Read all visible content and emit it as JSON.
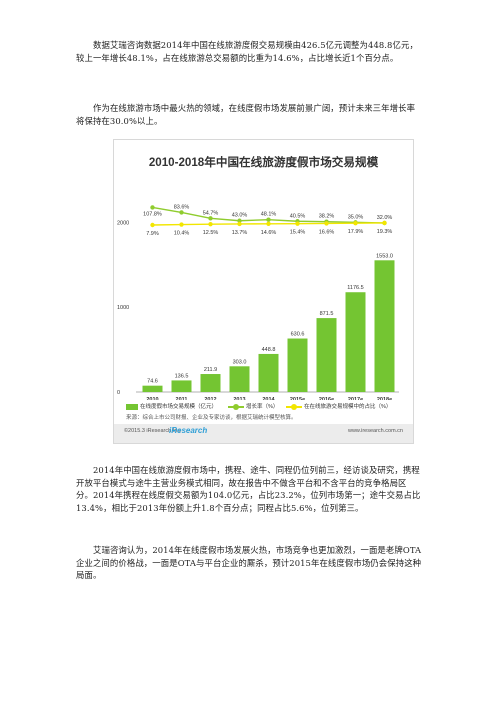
{
  "paragraphs": [
    "数据艾瑞咨询数据2014年中国在线旅游度假交易规模由426.5亿元调整为448.8亿元，较上一年增长48.1%，占在线旅游总交易额的比重为14.6%，占比增长近1个百分点。",
    "作为在线旅游市场中最火热的领域，在线度假市场发展前景广阔，预计未来三年增长率将保持在30.0%以上。",
    "2014年中国在线旅游度假市场中，携程、途牛、同程仍位列前三，经访谈及研究，携程开放平台模式与途牛主营业务模式相同，故在报告中不做含平台和不含平台的竞争格局区分。2014年携程在线度假交易额为104.0亿元，占比23.2%，位列市场第一；途牛交易占比13.4%，相比于2013年份额上升1.8个百分点；同程占比5.6%，位列第三。",
    "艾瑞咨询认为，2014年在线度假市场发展火热，市场竞争也更加激烈，一面是老牌OTA企业之间的价格战，一面是OTA与平台企业的厮杀，预计2015年在线度假市场仍会保持这种局面。"
  ],
  "figure": {
    "copyright": "©2015.3 iResearch Inc.",
    "logo": "iResearch",
    "url": "www.iresearch.com.cn",
    "source": "来源：综合上市公司财报、企业及专家访谈，根据艾瑞统计模型核算。"
  },
  "chart_data": {
    "type": "bar",
    "title": "2010-2018年中国在线旅游度假市场交易规模",
    "categories": [
      "2010",
      "2011",
      "2012",
      "2013",
      "2014",
      "2015e",
      "2016e",
      "2017e",
      "2018e"
    ],
    "y_ticks": [
      "0",
      "1000",
      "2000"
    ],
    "ylim": [
      0,
      2600
    ],
    "series": [
      {
        "name": "在线度假市场交易规模（亿元）",
        "kind": "bar",
        "color": "#74c532",
        "values": [
          74.6,
          136.5,
          211.9,
          303.0,
          448.8,
          630.6,
          871.5,
          1176.5,
          1553.0
        ],
        "labels": [
          "74.6",
          "136.5",
          "211.9",
          "303.0",
          "448.8",
          "630.6",
          "871.5",
          "1176.5",
          "1553.0"
        ]
      },
      {
        "name": "增长率（%）",
        "kind": "line",
        "color": "#8fcc2e",
        "values": [
          107.8,
          83.6,
          54.7,
          43.0,
          48.1,
          40.5,
          38.2,
          35.0,
          32.0
        ],
        "labels": [
          "107.8%",
          "83.6%",
          "54.7%",
          "43.0%",
          "48.1%",
          "40.5%",
          "38.2%",
          "35.0%",
          "32.0%"
        ]
      },
      {
        "name": "在在线旅游交易规模中的占比（%）",
        "kind": "line",
        "color": "#f2e600",
        "values": [
          7.9,
          10.4,
          12.5,
          13.7,
          14.6,
          15.4,
          16.6,
          17.9,
          19.3
        ],
        "labels": [
          "7.9%",
          "10.4%",
          "12.5%",
          "13.7%",
          "14.6%",
          "15.4%",
          "16.6%",
          "17.9%",
          "19.3%"
        ]
      }
    ],
    "grid": false,
    "legend_position": "bottom"
  }
}
